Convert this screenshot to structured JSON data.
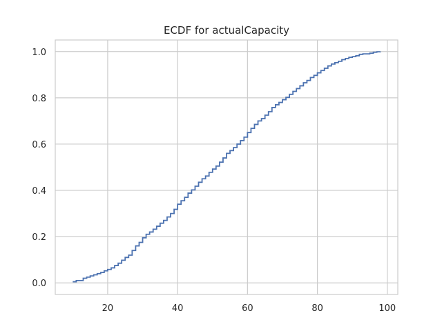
{
  "chart_data": {
    "type": "line",
    "drawstyle": "steps-post",
    "title": "ECDF for actualCapacity",
    "xlabel": "",
    "ylabel": "",
    "xlim": [
      5,
      103
    ],
    "ylim": [
      -0.05,
      1.05
    ],
    "xticks": [
      20,
      40,
      60,
      80,
      100
    ],
    "xtick_labels": [
      "20",
      "40",
      "60",
      "80",
      "100"
    ],
    "yticks": [
      0.0,
      0.2,
      0.4,
      0.6,
      0.8,
      1.0
    ],
    "ytick_labels": [
      "0.0",
      "0.2",
      "0.4",
      "0.6",
      "0.8",
      "1.0"
    ],
    "grid": true,
    "colors": {
      "line": "#4c72b0",
      "grid": "#cccccc",
      "spine": "#cccccc",
      "background": "#ffffff"
    },
    "series": [
      {
        "x": [
          10,
          11,
          12,
          13,
          14,
          15,
          16,
          17,
          18,
          19,
          20,
          21,
          22,
          23,
          24,
          25,
          26,
          27,
          28,
          29,
          30,
          31,
          32,
          33,
          34,
          35,
          36,
          37,
          38,
          39,
          40,
          41,
          42,
          43,
          44,
          45,
          46,
          47,
          48,
          49,
          50,
          51,
          52,
          53,
          54,
          55,
          56,
          57,
          58,
          59,
          60,
          61,
          62,
          63,
          64,
          65,
          66,
          67,
          68,
          69,
          70,
          71,
          72,
          73,
          74,
          75,
          76,
          77,
          78,
          79,
          80,
          81,
          82,
          83,
          84,
          85,
          86,
          87,
          88,
          89,
          90,
          91,
          92,
          93,
          94,
          95,
          96,
          97,
          98
        ],
        "y": [
          0.005,
          0.01,
          0.01,
          0.02,
          0.025,
          0.03,
          0.035,
          0.04,
          0.045,
          0.052,
          0.058,
          0.065,
          0.075,
          0.085,
          0.098,
          0.11,
          0.12,
          0.14,
          0.16,
          0.175,
          0.195,
          0.21,
          0.22,
          0.232,
          0.245,
          0.258,
          0.27,
          0.285,
          0.3,
          0.318,
          0.34,
          0.355,
          0.37,
          0.388,
          0.402,
          0.418,
          0.435,
          0.45,
          0.462,
          0.478,
          0.492,
          0.505,
          0.522,
          0.54,
          0.56,
          0.572,
          0.585,
          0.6,
          0.615,
          0.63,
          0.65,
          0.668,
          0.685,
          0.7,
          0.71,
          0.725,
          0.74,
          0.758,
          0.77,
          0.78,
          0.792,
          0.802,
          0.815,
          0.828,
          0.84,
          0.852,
          0.865,
          0.875,
          0.888,
          0.897,
          0.908,
          0.918,
          0.928,
          0.938,
          0.946,
          0.952,
          0.958,
          0.965,
          0.97,
          0.975,
          0.978,
          0.982,
          0.988,
          0.99,
          0.99,
          0.993,
          0.997,
          0.999,
          1.0
        ]
      }
    ]
  }
}
